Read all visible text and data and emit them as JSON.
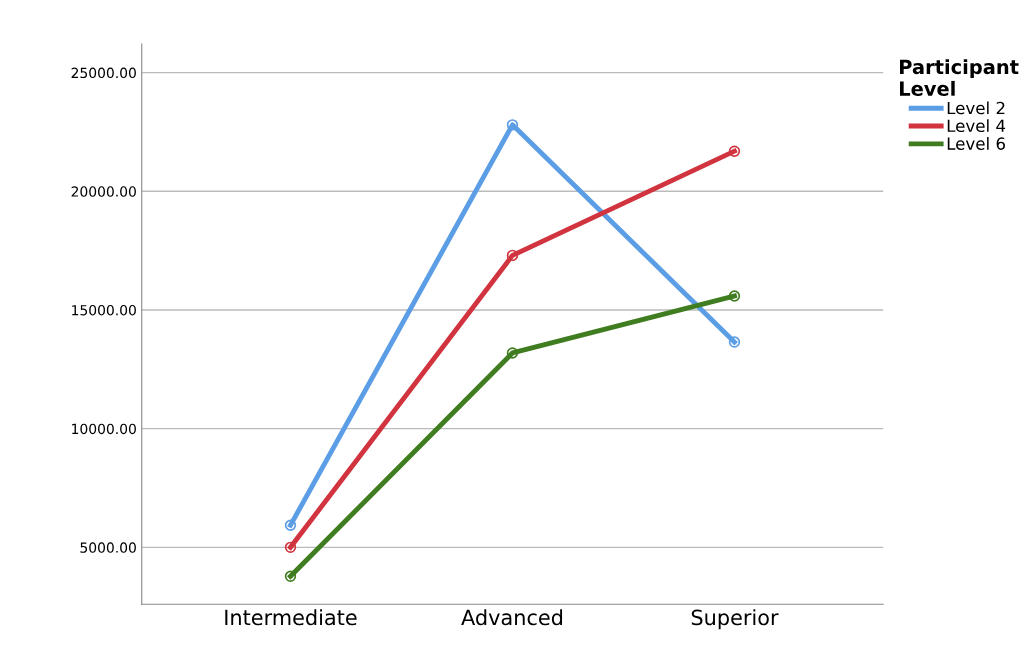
{
  "chart_data": {
    "type": "line",
    "categories": [
      "Intermediate",
      "Advanced",
      "Superior"
    ],
    "series": [
      {
        "name": "Level 2",
        "color": "#5b9ee6",
        "values": [
          5930,
          22800,
          13650
        ]
      },
      {
        "name": "Level 4",
        "color": "#d1343f",
        "values": [
          5000,
          17300,
          21690
        ]
      },
      {
        "name": "Level 6",
        "color": "#3f7d20",
        "values": [
          3780,
          13190,
          15590
        ]
      }
    ],
    "legend_title": "Participant\nLevel",
    "ylim": [
      2600,
      26200
    ],
    "yticks": [
      {
        "value": 5000,
        "label": "5000.00"
      },
      {
        "value": 10000,
        "label": "10000.00"
      },
      {
        "value": 15000,
        "label": "15000.00"
      },
      {
        "value": 20000,
        "label": "20000.00"
      },
      {
        "value": 25000,
        "label": "25000.00"
      }
    ],
    "grid": "y",
    "legend": "top right",
    "marker": "circle",
    "line_style": "solid"
  }
}
